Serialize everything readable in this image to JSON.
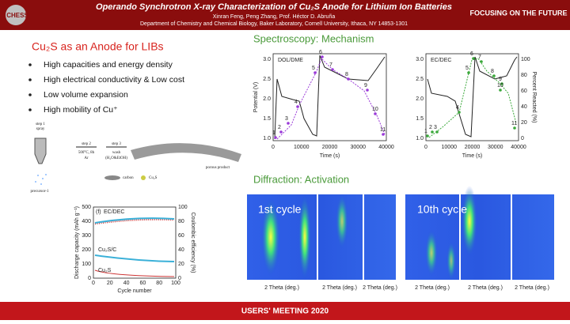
{
  "header": {
    "logo": "CHESS",
    "title": "Operando Synchrotron X-ray Characterization of Cu₂S Anode for Lithium Ion Batteries",
    "authors": "Xinran Feng, Peng Zhang, Prof. Héctor D. Abruña",
    "affiliation": "Department of Chemistry and Chemical Biology, Baker Laboratory, Cornell University, Ithaca, NY 14853-1301",
    "tagline": "FOCUSING ON THE FUTURE"
  },
  "left": {
    "heading": "Cu₂S as an Anode for LIBs",
    "bullets": [
      "High capacities and energy density",
      "High electrical conductivity & Low cost",
      "Low volume expansion",
      "High mobility of Cu⁺"
    ],
    "schematic": {
      "step1": "step 1",
      "spray": "spray",
      "step2": "step 2",
      "cond2": "500°C, 8h",
      "gas": "Ar",
      "step3": "step 3",
      "wash": "wash",
      "solvent": "(H₂O&EtOH)",
      "product": "porous product",
      "precursor": "precursor-1",
      "carbon": "carbon",
      "cu2s": "Cu₂S"
    },
    "cycling": {
      "panel": "(f)",
      "ylabel": "Discharge capacity (mAh g⁻¹)",
      "y2label": "Coulombic efficiency (%)",
      "xlabel": "Cycle number",
      "yticks": [
        "0",
        "100",
        "200",
        "300",
        "400",
        "500"
      ],
      "y2ticks": [
        "0",
        "20",
        "40",
        "60",
        "80",
        "100"
      ],
      "xticks": [
        "0",
        "20",
        "40",
        "60",
        "80",
        "100"
      ],
      "labels": [
        "EC/DEC",
        "Cu₂S/C",
        "Cu₂S"
      ]
    }
  },
  "spectroscopy": {
    "heading": "Spectroscopy: Mechanism",
    "plots": [
      {
        "label": "DOL/DME",
        "ylabel": "Potential (V)",
        "yticks": [
          "1.0",
          "1.5",
          "2.0",
          "2.5",
          "3.0"
        ],
        "xlabel": "Time (s)",
        "xticks": [
          "0",
          "10000",
          "20000",
          "30000",
          "40000"
        ],
        "points": [
          "1",
          "2",
          "3",
          "4",
          "5",
          "6",
          "7",
          "8",
          "9",
          "10",
          "11"
        ]
      },
      {
        "label": "EC/DEC",
        "y2label": "Percent Reacted (%)",
        "yticks": [
          "1.0",
          "1.5",
          "2.0",
          "2.5",
          "3.0"
        ],
        "y2ticks": [
          "0",
          "20",
          "40",
          "60",
          "80",
          "100"
        ],
        "xlabel": "Time (s)",
        "xticks": [
          "0",
          "10000",
          "20000",
          "30000",
          "40000"
        ],
        "points": [
          "1",
          "2",
          "3",
          "4",
          "5",
          "6",
          "7",
          "8",
          "9",
          "10",
          "11"
        ]
      }
    ]
  },
  "diffraction": {
    "heading": "Diffraction: Activation",
    "panels": [
      "1st cycle",
      "10th cycle"
    ],
    "xlabel": "2 Theta (deg.)"
  },
  "footer": "USERS' MEETING 2020"
}
